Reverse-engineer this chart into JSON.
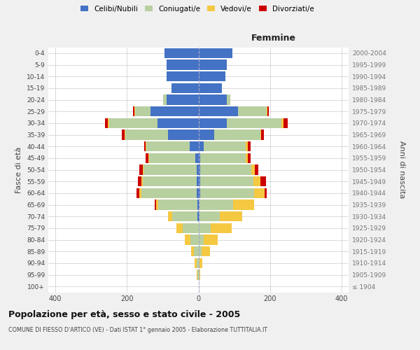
{
  "age_groups": [
    "100+",
    "95-99",
    "90-94",
    "85-89",
    "80-84",
    "75-79",
    "70-74",
    "65-69",
    "60-64",
    "55-59",
    "50-54",
    "45-49",
    "40-44",
    "35-39",
    "30-34",
    "25-29",
    "20-24",
    "15-19",
    "10-14",
    "5-9",
    "0-4"
  ],
  "birth_years": [
    "≤ 1904",
    "1905-1909",
    "1910-1914",
    "1915-1919",
    "1920-1924",
    "1925-1929",
    "1930-1934",
    "1935-1939",
    "1940-1944",
    "1945-1949",
    "1950-1954",
    "1955-1959",
    "1960-1964",
    "1965-1969",
    "1970-1974",
    "1975-1979",
    "1980-1984",
    "1985-1989",
    "1990-1994",
    "1995-1999",
    "2000-2004"
  ],
  "males_celibi": [
    0,
    0,
    0,
    0,
    0,
    0,
    2,
    3,
    5,
    5,
    5,
    8,
    25,
    85,
    115,
    135,
    90,
    75,
    90,
    90,
    95
  ],
  "males_coniugati": [
    0,
    2,
    5,
    12,
    22,
    45,
    72,
    110,
    155,
    150,
    148,
    130,
    120,
    120,
    135,
    42,
    8,
    0,
    0,
    0,
    0
  ],
  "males_vedovi": [
    0,
    2,
    6,
    8,
    16,
    16,
    12,
    6,
    5,
    4,
    3,
    2,
    2,
    2,
    4,
    2,
    0,
    0,
    0,
    0,
    0
  ],
  "males_divorziati": [
    0,
    0,
    0,
    0,
    0,
    0,
    0,
    4,
    8,
    10,
    10,
    8,
    5,
    8,
    8,
    5,
    0,
    0,
    0,
    0,
    0
  ],
  "females_nubili": [
    0,
    0,
    0,
    0,
    0,
    0,
    2,
    2,
    5,
    5,
    5,
    5,
    15,
    45,
    80,
    110,
    80,
    65,
    75,
    80,
    95
  ],
  "females_coniugate": [
    0,
    2,
    3,
    8,
    15,
    35,
    58,
    95,
    150,
    148,
    142,
    128,
    118,
    128,
    152,
    80,
    10,
    0,
    0,
    0,
    0
  ],
  "females_vedove": [
    0,
    3,
    8,
    25,
    38,
    58,
    62,
    58,
    30,
    20,
    10,
    5,
    5,
    2,
    5,
    2,
    0,
    0,
    0,
    0,
    0
  ],
  "females_divorziate": [
    0,
    0,
    0,
    0,
    0,
    0,
    0,
    0,
    5,
    15,
    10,
    8,
    8,
    8,
    12,
    5,
    0,
    0,
    0,
    0,
    0
  ],
  "color_celibi": "#4472C4",
  "color_coniugati": "#B8CFA0",
  "color_vedovi": "#F5C842",
  "color_divorziati": "#CC0000",
  "title": "Popolazione per età, sesso e stato civile - 2005",
  "subtitle": "COMUNE DI FIESSO D'ARTICO (VE) - Dati ISTAT 1° gennaio 2005 - Elaborazione TUTTITALIA.IT",
  "label_femmine": "Femmine",
  "label_fasce": "Fasce di età",
  "label_anni": "Anni di nascita",
  "legend_labels": [
    "Celibi/Nubili",
    "Coniugati/e",
    "Vedovi/e",
    "Divorziati/e"
  ],
  "xlim": 420,
  "bg_color": "#f0f0f0",
  "plot_bg": "#ffffff",
  "xtick_vals": [
    -400,
    -200,
    0,
    200,
    400
  ]
}
